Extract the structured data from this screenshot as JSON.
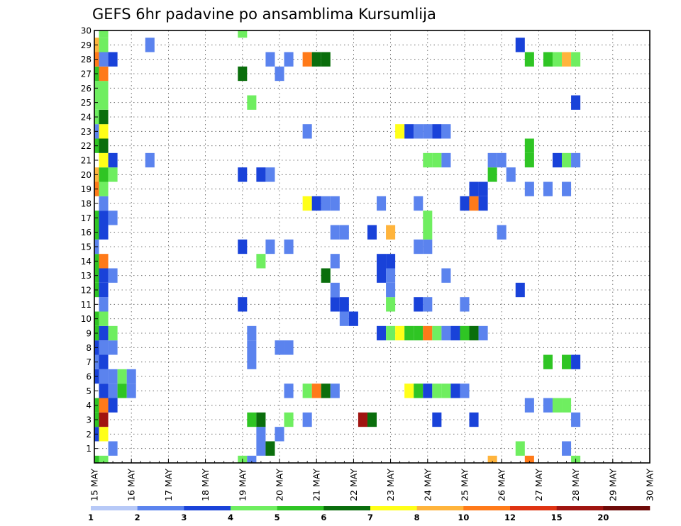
{
  "chart_data": {
    "type": "heatmap",
    "title": "GEFS 6hr padavine po ansamblima Kursumlija",
    "xlabel": "",
    "ylabel": "",
    "x_tick_labels": [
      "15 MAY",
      "16 MAY",
      "17 MAY",
      "18 MAY",
      "19 MAY",
      "20 MAY",
      "21 MAY",
      "22 MAY",
      "23 MAY",
      "24 MAY",
      "25 MAY",
      "26 MAY",
      "27 MAY",
      "28 MAY",
      "29 MAY",
      "30 MAY"
    ],
    "y_tick_labels": [
      "1",
      "2",
      "3",
      "4",
      "5",
      "6",
      "7",
      "8",
      "9",
      "10",
      "11",
      "12",
      "13",
      "14",
      "15",
      "16",
      "17",
      "18",
      "19",
      "20",
      "21",
      "22",
      "23",
      "24",
      "25",
      "26",
      "27",
      "28",
      "29",
      "30"
    ],
    "ensemble_members": 31,
    "time_step_hours": 6,
    "steps": 61,
    "step0_date": "15 MAY",
    "grid": true,
    "legend": {
      "placement": "bottom",
      "boundaries": [
        "1",
        "2",
        "3",
        "4",
        "5",
        "6",
        "7",
        "8",
        "10",
        "12",
        "15",
        "20"
      ],
      "colors": [
        "#b7c9f7",
        "#5b83ee",
        "#1942d9",
        "#6fee60",
        "#2fc524",
        "#0a6e0c",
        "#ffff18",
        "#ffb43c",
        "#ff7a19",
        "#df3312",
        "#a01410",
        "#6e0a08"
      ]
    },
    "cells": [
      [
        0,
        0,
        4
      ],
      [
        0,
        2,
        2
      ],
      [
        0,
        3,
        4
      ],
      [
        0,
        4,
        4
      ],
      [
        0,
        6,
        2
      ],
      [
        0,
        7,
        1
      ],
      [
        0,
        8,
        2
      ],
      [
        0,
        9,
        4
      ],
      [
        0,
        10,
        4
      ],
      [
        0,
        12,
        4
      ],
      [
        0,
        13,
        4
      ],
      [
        0,
        14,
        4
      ],
      [
        0,
        15,
        1
      ],
      [
        0,
        16,
        4
      ],
      [
        0,
        17,
        4
      ],
      [
        0,
        19,
        8
      ],
      [
        0,
        20,
        7
      ],
      [
        0,
        22,
        4
      ],
      [
        0,
        23,
        1
      ],
      [
        0,
        24,
        3
      ],
      [
        0,
        25,
        3
      ],
      [
        0,
        26,
        3
      ],
      [
        0,
        27,
        4
      ],
      [
        0,
        28,
        8
      ],
      [
        0,
        29,
        7
      ],
      [
        1,
        0,
        3
      ],
      [
        1,
        2,
        6
      ],
      [
        1,
        3,
        10
      ],
      [
        1,
        4,
        8
      ],
      [
        1,
        5,
        2
      ],
      [
        1,
        6,
        1
      ],
      [
        1,
        7,
        2
      ],
      [
        1,
        8,
        1
      ],
      [
        1,
        9,
        2
      ],
      [
        1,
        10,
        3
      ],
      [
        1,
        11,
        1
      ],
      [
        1,
        12,
        2
      ],
      [
        1,
        13,
        2
      ],
      [
        1,
        14,
        8
      ],
      [
        1,
        16,
        2
      ],
      [
        1,
        17,
        2
      ],
      [
        1,
        18,
        1
      ],
      [
        1,
        19,
        3
      ],
      [
        1,
        20,
        4
      ],
      [
        1,
        21,
        6
      ],
      [
        1,
        22,
        5
      ],
      [
        1,
        23,
        6
      ],
      [
        1,
        24,
        5
      ],
      [
        1,
        25,
        3
      ],
      [
        1,
        26,
        3
      ],
      [
        1,
        27,
        8
      ],
      [
        1,
        28,
        1
      ],
      [
        1,
        29,
        3
      ],
      [
        1,
        30,
        3
      ],
      [
        2,
        1,
        1
      ],
      [
        2,
        4,
        2
      ],
      [
        2,
        5,
        1
      ],
      [
        2,
        6,
        1
      ],
      [
        2,
        8,
        1
      ],
      [
        2,
        9,
        3
      ],
      [
        2,
        13,
        1
      ],
      [
        2,
        17,
        1
      ],
      [
        2,
        20,
        3
      ],
      [
        2,
        21,
        2
      ],
      [
        2,
        28,
        2
      ],
      [
        3,
        5,
        4
      ],
      [
        3,
        6,
        3
      ],
      [
        4,
        5,
        1
      ],
      [
        4,
        6,
        1
      ],
      [
        6,
        21,
        1
      ],
      [
        6,
        29,
        1
      ],
      [
        16,
        0,
        3
      ],
      [
        16,
        11,
        2
      ],
      [
        16,
        15,
        2
      ],
      [
        16,
        20,
        2
      ],
      [
        16,
        27,
        5
      ],
      [
        16,
        30,
        3
      ],
      [
        17,
        0,
        1
      ],
      [
        17,
        3,
        4
      ],
      [
        17,
        7,
        1
      ],
      [
        17,
        8,
        1
      ],
      [
        17,
        9,
        1
      ],
      [
        17,
        25,
        3
      ],
      [
        18,
        1,
        1
      ],
      [
        18,
        2,
        1
      ],
      [
        18,
        3,
        5
      ],
      [
        18,
        14,
        3
      ],
      [
        18,
        20,
        2
      ],
      [
        19,
        1,
        5
      ],
      [
        19,
        15,
        1
      ],
      [
        19,
        20,
        1
      ],
      [
        19,
        28,
        1
      ],
      [
        20,
        2,
        1
      ],
      [
        20,
        8,
        1
      ],
      [
        20,
        27,
        1
      ],
      [
        21,
        3,
        3
      ],
      [
        21,
        5,
        1
      ],
      [
        21,
        8,
        1
      ],
      [
        21,
        15,
        1
      ],
      [
        21,
        28,
        1
      ],
      [
        23,
        3,
        1
      ],
      [
        23,
        5,
        3
      ],
      [
        23,
        18,
        6
      ],
      [
        23,
        23,
        1
      ],
      [
        23,
        28,
        8
      ],
      [
        24,
        5,
        8
      ],
      [
        24,
        18,
        2
      ],
      [
        24,
        28,
        5
      ],
      [
        25,
        5,
        5
      ],
      [
        25,
        13,
        5
      ],
      [
        25,
        18,
        1
      ],
      [
        25,
        28,
        5
      ],
      [
        26,
        5,
        1
      ],
      [
        26,
        11,
        2
      ],
      [
        26,
        12,
        1
      ],
      [
        26,
        14,
        1
      ],
      [
        26,
        16,
        1
      ],
      [
        26,
        18,
        1
      ],
      [
        27,
        10,
        1
      ],
      [
        27,
        11,
        2
      ],
      [
        27,
        16,
        1
      ],
      [
        28,
        10,
        2
      ],
      [
        29,
        3,
        10
      ],
      [
        30,
        3,
        5
      ],
      [
        30,
        16,
        2
      ],
      [
        31,
        9,
        2
      ],
      [
        31,
        13,
        2
      ],
      [
        31,
        14,
        2
      ],
      [
        31,
        18,
        1
      ],
      [
        32,
        9,
        3
      ],
      [
        32,
        11,
        3
      ],
      [
        32,
        12,
        1
      ],
      [
        32,
        13,
        1
      ],
      [
        32,
        14,
        2
      ],
      [
        32,
        16,
        7
      ],
      [
        33,
        9,
        6
      ],
      [
        33,
        23,
        6
      ],
      [
        34,
        5,
        6
      ],
      [
        34,
        9,
        4
      ],
      [
        34,
        23,
        2
      ],
      [
        35,
        5,
        4
      ],
      [
        35,
        9,
        4
      ],
      [
        35,
        11,
        2
      ],
      [
        35,
        15,
        1
      ],
      [
        35,
        18,
        1
      ],
      [
        35,
        23,
        1
      ],
      [
        36,
        5,
        2
      ],
      [
        36,
        9,
        8
      ],
      [
        36,
        11,
        1
      ],
      [
        36,
        15,
        1
      ],
      [
        36,
        16,
        3
      ],
      [
        36,
        17,
        3
      ],
      [
        36,
        21,
        3
      ],
      [
        36,
        23,
        1
      ],
      [
        37,
        3,
        2
      ],
      [
        37,
        5,
        3
      ],
      [
        37,
        9,
        3
      ],
      [
        37,
        21,
        3
      ],
      [
        37,
        23,
        2
      ],
      [
        38,
        5,
        3
      ],
      [
        38,
        9,
        1
      ],
      [
        38,
        13,
        1
      ],
      [
        38,
        21,
        1
      ],
      [
        38,
        23,
        1
      ],
      [
        39,
        5,
        2
      ],
      [
        39,
        9,
        2
      ],
      [
        40,
        5,
        1
      ],
      [
        40,
        9,
        4
      ],
      [
        40,
        11,
        1
      ],
      [
        40,
        18,
        2
      ],
      [
        41,
        3,
        2
      ],
      [
        41,
        9,
        5
      ],
      [
        41,
        18,
        8
      ],
      [
        41,
        19,
        2
      ],
      [
        42,
        9,
        1
      ],
      [
        42,
        18,
        2
      ],
      [
        42,
        19,
        2
      ],
      [
        43,
        0,
        7
      ],
      [
        43,
        20,
        4
      ],
      [
        43,
        21,
        1
      ],
      [
        44,
        16,
        1
      ],
      [
        44,
        21,
        1
      ],
      [
        45,
        20,
        1
      ],
      [
        46,
        1,
        3
      ],
      [
        46,
        12,
        2
      ],
      [
        46,
        29,
        2
      ],
      [
        47,
        0,
        8
      ],
      [
        47,
        4,
        1
      ],
      [
        47,
        19,
        1
      ],
      [
        47,
        21,
        4
      ],
      [
        47,
        22,
        4
      ],
      [
        47,
        28,
        4
      ],
      [
        49,
        4,
        1
      ],
      [
        49,
        7,
        4
      ],
      [
        49,
        19,
        1
      ],
      [
        49,
        28,
        4
      ],
      [
        50,
        4,
        3
      ],
      [
        50,
        21,
        2
      ],
      [
        50,
        28,
        3
      ],
      [
        51,
        1,
        1
      ],
      [
        51,
        4,
        3
      ],
      [
        51,
        7,
        4
      ],
      [
        51,
        19,
        1
      ],
      [
        51,
        21,
        3
      ],
      [
        51,
        28,
        7
      ],
      [
        52,
        0,
        3
      ],
      [
        52,
        3,
        1
      ],
      [
        52,
        7,
        2
      ],
      [
        52,
        21,
        1
      ],
      [
        52,
        25,
        2
      ],
      [
        52,
        28,
        3
      ]
    ]
  }
}
